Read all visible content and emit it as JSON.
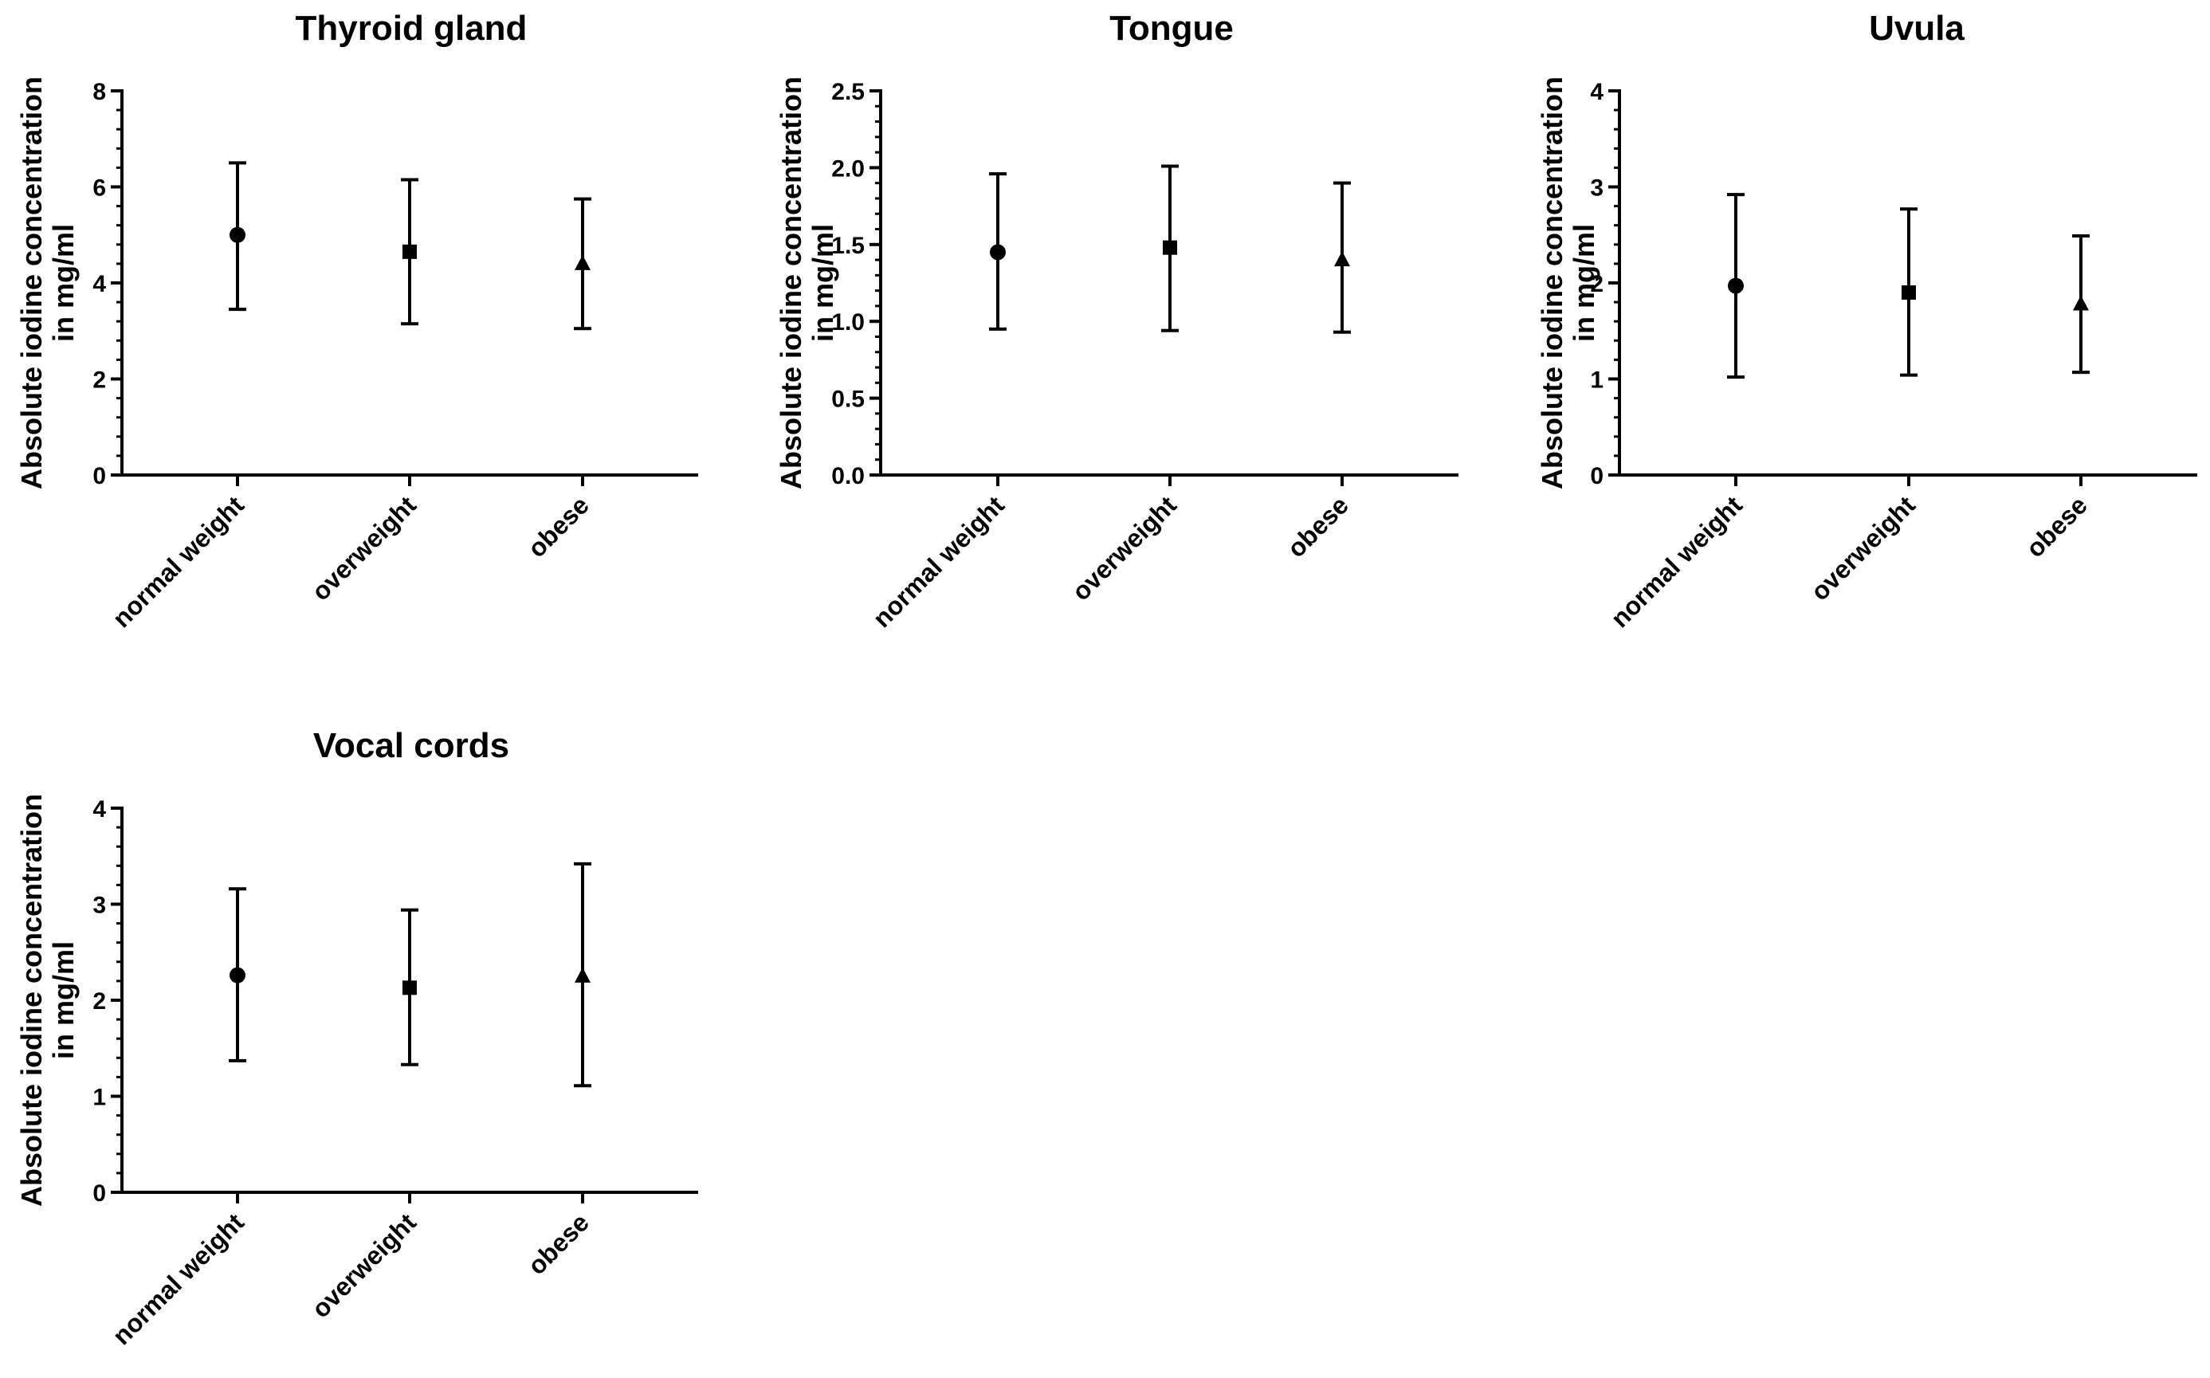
{
  "figure": {
    "marker_color": "#000000",
    "line_color": "#000000",
    "background": "#ffffff"
  },
  "chart_data": [
    {
      "type": "scatter",
      "subtype": "mean_with_error_bars",
      "title": "Thyroid gland",
      "ylabel_line1": "Absolute iodine concentration",
      "ylabel_line2": "in mg/ml",
      "xlabel": "",
      "ylim": [
        0,
        8
      ],
      "yticks": [
        0,
        2,
        4,
        6,
        8
      ],
      "ytick_labels": [
        "0",
        "2",
        "4",
        "6",
        "8"
      ],
      "minor_ticks_per_major": 5,
      "categories": [
        "normal weight",
        "overweight",
        "obese"
      ],
      "markers": [
        "circle",
        "square",
        "triangle"
      ],
      "values": [
        5.0,
        4.65,
        4.4
      ],
      "err_low": [
        3.45,
        3.15,
        3.05
      ],
      "err_high": [
        6.5,
        6.15,
        5.75
      ]
    },
    {
      "type": "scatter",
      "subtype": "mean_with_error_bars",
      "title": "Tongue",
      "ylabel_line1": "Absolute iodine concentration",
      "ylabel_line2": "in mg/ml",
      "xlabel": "",
      "ylim": [
        0,
        2.5
      ],
      "yticks": [
        0,
        0.5,
        1.0,
        1.5,
        2.0,
        2.5
      ],
      "ytick_labels": [
        "0.0",
        "0.5",
        "1.0",
        "1.5",
        "2.0",
        "2.5"
      ],
      "minor_ticks_per_major": 5,
      "categories": [
        "normal weight",
        "overweight",
        "obese"
      ],
      "markers": [
        "circle",
        "square",
        "triangle"
      ],
      "values": [
        1.45,
        1.48,
        1.4
      ],
      "err_low": [
        0.95,
        0.94,
        0.93
      ],
      "err_high": [
        1.96,
        2.01,
        1.9
      ]
    },
    {
      "type": "scatter",
      "subtype": "mean_with_error_bars",
      "title": "Uvula",
      "ylabel_line1": "Absolute iodine concentration",
      "ylabel_line2": "in mg/ml",
      "xlabel": "",
      "ylim": [
        0,
        4
      ],
      "yticks": [
        0,
        1,
        2,
        3,
        4
      ],
      "ytick_labels": [
        "0",
        "1",
        "2",
        "3",
        "4"
      ],
      "minor_ticks_per_major": 5,
      "categories": [
        "normal weight",
        "overweight",
        "obese"
      ],
      "markers": [
        "circle",
        "square",
        "triangle"
      ],
      "values": [
        1.97,
        1.9,
        1.78
      ],
      "err_low": [
        1.02,
        1.04,
        1.07
      ],
      "err_high": [
        2.92,
        2.77,
        2.49
      ]
    },
    {
      "type": "scatter",
      "subtype": "mean_with_error_bars",
      "title": "Vocal cords",
      "ylabel_line1": "Absolute iodine concentration",
      "ylabel_line2": "in mg/ml",
      "xlabel": "",
      "ylim": [
        0,
        4
      ],
      "yticks": [
        0,
        1,
        2,
        3,
        4
      ],
      "ytick_labels": [
        "0",
        "1",
        "2",
        "3",
        "4"
      ],
      "minor_ticks_per_major": 5,
      "categories": [
        "normal weight",
        "overweight",
        "obese"
      ],
      "markers": [
        "circle",
        "square",
        "triangle"
      ],
      "values": [
        2.26,
        2.13,
        2.25
      ],
      "err_low": [
        1.37,
        1.33,
        1.11
      ],
      "err_high": [
        3.16,
        2.94,
        3.42
      ]
    }
  ]
}
